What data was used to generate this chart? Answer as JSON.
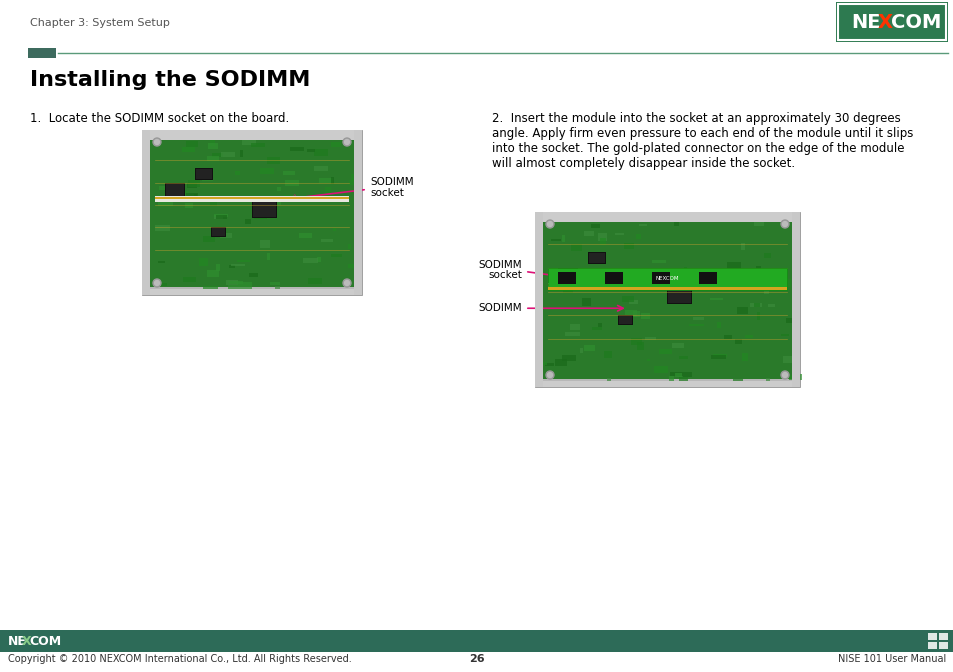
{
  "page_bg": "#ffffff",
  "header_text": "Chapter 3: System Setup",
  "header_text_color": "#555555",
  "header_text_size": 8,
  "divider_color_dark": "#3d6b5e",
  "divider_color_light": "#5a9a7a",
  "title": "Installing the SODIMM",
  "title_size": 16,
  "title_color": "#000000",
  "step1_num": "1.",
  "step1_text": "Locate the SODIMM socket on the board.",
  "step1_size": 8.5,
  "step2_num": "2.",
  "step2_text": "Insert the module into the socket at an approximately 30 degrees\nangle. Apply firm even pressure to each end of the module until it slips\ninto the socket. The gold-plated connector on the edge of the module\nwill almost completely disappear inside the socket.",
  "step2_size": 8.5,
  "arrow1_label_line1": "SODIMM",
  "arrow1_label_line2": "socket",
  "arrow2_label_line1": "SODIMM",
  "arrow2_label_line2": "socket",
  "arrow3_label": "SODIMM",
  "arrow_color": "#dd1177",
  "arrow_label_size": 7.5,
  "footer_bar_color": "#2d6b58",
  "footer_copyright": "Copyright © 2010 NEXCOM International Co., Ltd. All Rights Reserved.",
  "footer_page": "26",
  "footer_right": "NISE 101 User Manual",
  "footer_text_color": "#333333",
  "footer_text_size": 7
}
